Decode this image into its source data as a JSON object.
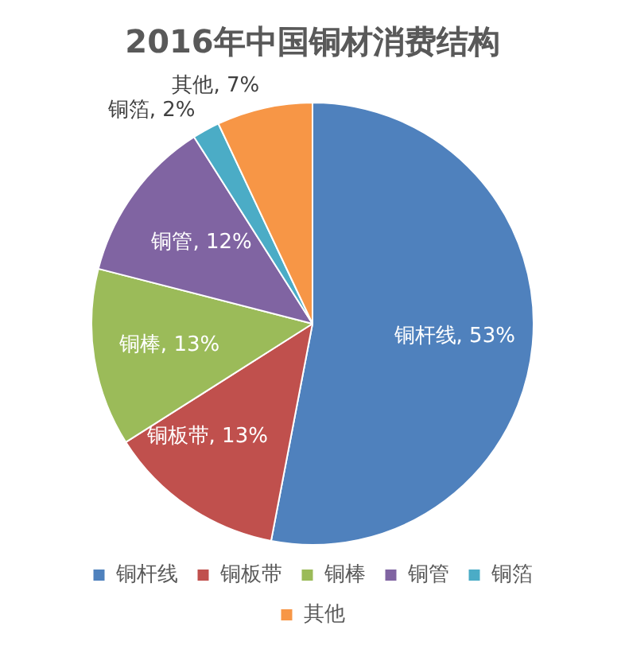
{
  "chart_data": {
    "type": "pie",
    "title": "2016年中国铜材消费结构",
    "categories": [
      "铜杆线",
      "铜板带",
      "铜棒",
      "铜管",
      "铜箔",
      "其他"
    ],
    "values": [
      53,
      13,
      13,
      12,
      2,
      7
    ],
    "colors": [
      "#4f81bd",
      "#c0504d",
      "#9bbb59",
      "#8064a2",
      "#4bacc6",
      "#f79646"
    ],
    "value_labels": [
      "铜杆线, 53%",
      "铜板带, 13%",
      "铜棒, 13%",
      "铜管, 12%",
      "铜箔, 2%",
      "其他, 7%"
    ],
    "legend": "bottom"
  }
}
